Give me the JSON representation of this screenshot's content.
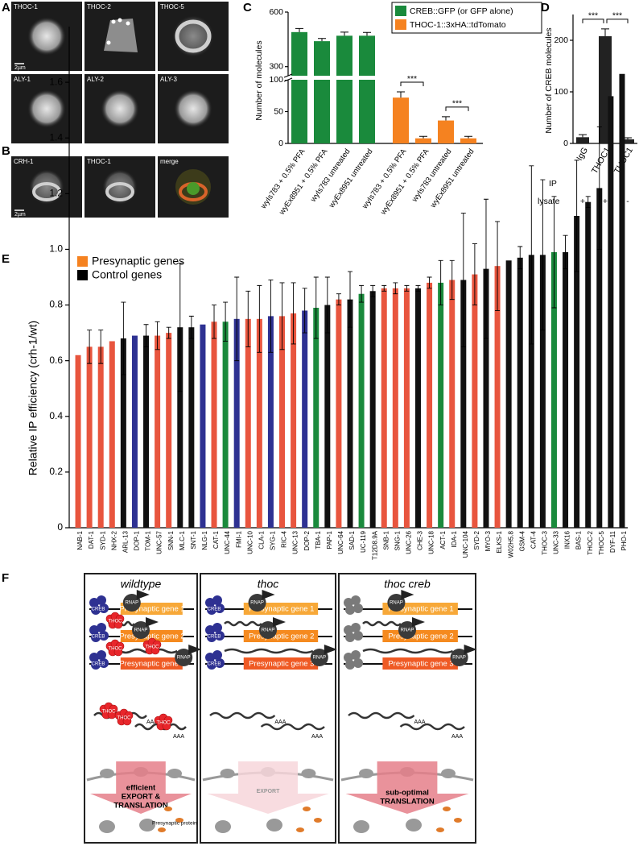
{
  "panel_labels": [
    "A",
    "B",
    "C",
    "D",
    "E",
    "F"
  ],
  "micrographs": {
    "a_row1": [
      "THOC-1",
      "THOC-2",
      "THOC-5"
    ],
    "a_row2": [
      "ALY-1",
      "ALY-2",
      "ALY-3"
    ],
    "b": [
      "CRH-1",
      "THOC-1",
      "merge"
    ],
    "scale_bar": "2µm"
  },
  "chart_data": [
    {
      "type": "bar",
      "y_label": "Number of molecules",
      "categories": [
        "wyIs783 + 0.5% PFA",
        "wyEx8951 + 0.5% PFA",
        "wyIs783  untreated",
        "wyEx8951  untreated",
        "wyIs783 + 0.5% PFA",
        "wyEx8951 + 0.5% PFA",
        "wyIs783  untreated",
        "wyEx8951  untreated"
      ],
      "series": [
        {
          "name": "CREB::GFP (or GFP alone)",
          "color": "#1a8a3c",
          "values": [
            490,
            440,
            470,
            470,
            null,
            null,
            null,
            null
          ],
          "errors": [
            20,
            15,
            20,
            18,
            null,
            null,
            null,
            null
          ]
        },
        {
          "name": "THOC-1::3xHA::tdTomato",
          "color": "#f58220",
          "values": [
            null,
            null,
            null,
            null,
            72,
            8,
            36,
            8
          ],
          "errors": [
            null,
            null,
            null,
            null,
            9,
            3,
            6,
            3
          ]
        }
      ],
      "ylim": [
        0,
        600
      ],
      "ybreak": [
        100,
        250
      ],
      "yticks": [
        0,
        50,
        100,
        300,
        600
      ],
      "brackets": [
        {
          "label": "***",
          "categories": [
            4,
            5
          ]
        },
        {
          "label": "***",
          "categories": [
            6,
            7
          ]
        }
      ]
    },
    {
      "type": "bar",
      "y_label": "Number of CREB molecules",
      "categories": [
        "IgG",
        "THOC1",
        "THOC1"
      ],
      "values": [
        12,
        208,
        8
      ],
      "errors": [
        5,
        14,
        3
      ],
      "color": "#222222",
      "ylim": [
        0,
        250
      ],
      "yticks": [
        0,
        100,
        200
      ],
      "brackets": [
        {
          "label": "***",
          "categories": [
            0,
            1
          ]
        },
        {
          "label": "***",
          "categories": [
            1,
            2
          ]
        }
      ],
      "x_label": "IP",
      "rows": [
        {
          "label": "lysate",
          "values": [
            "+",
            "+",
            "-"
          ]
        }
      ]
    },
    {
      "type": "bar",
      "y_label": "Relative IP efficiency (crh-1/wt)",
      "legend": [
        {
          "name": "Presynaptic genes",
          "color": "#f58220"
        },
        {
          "name": "Control genes",
          "color": "#000000"
        }
      ],
      "categories": [
        "NAB-1",
        "DAT-1",
        "SYD-1",
        "NHX-2",
        "ARL-13",
        "DOP-1",
        "TOM-1",
        "UNC-57",
        "SNN-1",
        "MLC-1",
        "SNT-1",
        "NLG-1",
        "CAT-1",
        "UNC-44",
        "FMI-1",
        "UNC-10",
        "CLA-1",
        "SYG-1",
        "RIC-4",
        "UNC-13",
        "DOP-2",
        "TBA-1",
        "PAP-1",
        "UNC-64",
        "SAD-1",
        "UC-119",
        "T12D8.9A",
        "SNB-1",
        "SNG-1",
        "UNC-26",
        "CHE-3",
        "UNC-18",
        "ACT-1",
        "IDA-1",
        "UNC-104",
        "SYD-2",
        "MYO-3",
        "ELKS-1",
        "W02H5.8",
        "GSM-4",
        "CAT-4",
        "THOC-3",
        "UNC-33",
        "INX16",
        "BAS-1",
        "THOC-2",
        "THOC-5",
        "DYF-11",
        "PHO-1"
      ],
      "values": [
        0.62,
        0.65,
        0.65,
        0.67,
        0.68,
        0.69,
        0.69,
        0.69,
        0.7,
        0.72,
        0.72,
        0.73,
        0.74,
        0.74,
        0.75,
        0.75,
        0.75,
        0.76,
        0.76,
        0.77,
        0.78,
        0.79,
        0.8,
        0.82,
        0.82,
        0.84,
        0.85,
        0.86,
        0.86,
        0.86,
        0.86,
        0.88,
        0.88,
        0.89,
        0.89,
        0.91,
        0.93,
        0.94,
        0.96,
        0.97,
        0.98,
        0.98,
        0.99,
        0.99,
        1.12,
        1.17,
        1.22,
        1.55,
        1.63
      ],
      "errors": [
        null,
        0.06,
        0.06,
        null,
        0.13,
        null,
        0.04,
        0.05,
        0.02,
        0.23,
        0.04,
        null,
        0.06,
        0.07,
        0.15,
        0.1,
        0.12,
        0.13,
        0.12,
        0.11,
        0.08,
        0.11,
        0.1,
        0.02,
        0.1,
        0.03,
        0.02,
        0.01,
        0.02,
        0.01,
        0.01,
        0.02,
        0.08,
        0.07,
        0.24,
        0.11,
        0.25,
        0.16,
        null,
        0.04,
        0.32,
        0.27,
        0.2,
        0.06,
        0.2,
        0.02,
        0.22,
        null,
        null
      ],
      "colors": [
        "#e8553e",
        "#e8553e",
        "#e8553e",
        "#e8553e",
        "#111111",
        "#2e3192",
        "#111111",
        "#e8553e",
        "#e8553e",
        "#111111",
        "#111111",
        "#2e3192",
        "#e8553e",
        "#1a8a3c",
        "#2e3192",
        "#e8553e",
        "#e8553e",
        "#2e3192",
        "#e8553e",
        "#e8553e",
        "#2e3192",
        "#1a8a3c",
        "#111111",
        "#e8553e",
        "#111111",
        "#1a8a3c",
        "#111111",
        "#e8553e",
        "#e8553e",
        "#e8553e",
        "#111111",
        "#e8553e",
        "#1a8a3c",
        "#e8553e",
        "#111111",
        "#e8553e",
        "#111111",
        "#e8553e",
        "#111111",
        "#111111",
        "#111111",
        "#111111",
        "#1a8a3c",
        "#111111",
        "#111111",
        "#111111",
        "#111111",
        "#111111",
        "#111111"
      ],
      "ylim": [
        0,
        1.8
      ],
      "yticks": [
        0,
        0.2,
        0.4,
        0.6,
        0.8,
        {
          "value": 1,
          "label": "1.0"
        },
        1.2,
        1.4,
        1.6
      ]
    }
  ],
  "diagram": {
    "columns": [
      {
        "title": "wildtype",
        "creb_color": "#2e3192",
        "creb_label": true,
        "thoc_bound": true,
        "arrow_color": "#e57f89",
        "arrow_lines": [
          "efficient",
          "EXPORT &",
          "TRANSLATION"
        ]
      },
      {
        "title": "thoc",
        "creb_color": "#2e3192",
        "creb_label": true,
        "thoc_bound": false,
        "arrow_color": "#f7d6da",
        "arrow_lines": [
          "EXPORT"
        ]
      },
      {
        "title": "thoc creb",
        "creb_color": "#7a7a7a",
        "creb_label": false,
        "thoc_bound": false,
        "arrow_color": "#e57f89",
        "arrow_lines": [
          "sub-optimal",
          "TRANSLATION"
        ]
      }
    ],
    "genes": [
      {
        "label": "Presynaptic gene 1",
        "color": "#f7a838"
      },
      {
        "label": "Presynaptic gene 2",
        "color": "#f58a1f"
      },
      {
        "label": "Presynaptic gene 3",
        "color": "#ef5a24"
      }
    ],
    "creb": "CREB",
    "rnap": "RNAP",
    "thoc": "THOC",
    "poly_a": "AAA",
    "protein": "Presynaptic protein"
  }
}
